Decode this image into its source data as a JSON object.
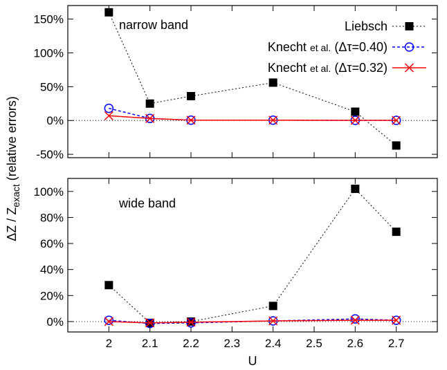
{
  "chart_data": [
    {
      "type": "line",
      "panel": "top",
      "annotation": "narrow band",
      "x": [
        2,
        2.1,
        2.2,
        2.4,
        2.6,
        2.7
      ],
      "xlim": [
        1.9,
        2.8
      ],
      "ylim": [
        -55,
        170
      ],
      "yticks": [
        -50,
        0,
        50,
        100,
        150
      ],
      "ytick_labels": [
        "-50%",
        "0%",
        "50%",
        "100%",
        "150%"
      ],
      "zero_line": true,
      "legend_position": "top-right",
      "series": [
        {
          "name": "Liebsch",
          "marker": "filled-square",
          "line": "dotted",
          "color": "#000000",
          "values": [
            160,
            25,
            36,
            56,
            13,
            -37
          ]
        },
        {
          "name": "Knecht et al. (Δτ=0.40)",
          "marker": "open-circle",
          "line": "dashed",
          "color": "#0000ff",
          "values": [
            18,
            3,
            0.5,
            0.5,
            0.2,
            0.2
          ]
        },
        {
          "name": "Knecht et al. (Δτ=0.32)",
          "marker": "cross",
          "line": "solid",
          "color": "#ff0000",
          "values": [
            7,
            3,
            0.5,
            0.5,
            0.2,
            0.2
          ]
        }
      ]
    },
    {
      "type": "line",
      "panel": "bottom",
      "annotation": "wide band",
      "x": [
        2,
        2.1,
        2.2,
        2.4,
        2.6,
        2.7
      ],
      "xlim": [
        1.9,
        2.8
      ],
      "ylim": [
        -8,
        110
      ],
      "yticks": [
        0,
        20,
        40,
        60,
        80,
        100
      ],
      "ytick_labels": [
        "0%",
        "20%",
        "40%",
        "60%",
        "80%",
        "100%"
      ],
      "xticks": [
        2,
        2.1,
        2.2,
        2.3,
        2.4,
        2.5,
        2.6,
        2.7
      ],
      "xtick_labels": [
        "2",
        "2.1",
        "2.2",
        "2.3",
        "2.4",
        "2.5",
        "2.6",
        "2.7"
      ],
      "xlabel": "U",
      "zero_line": true,
      "series": [
        {
          "name": "Liebsch",
          "marker": "filled-square",
          "line": "dotted",
          "color": "#000000",
          "values": [
            28,
            -1,
            0,
            12,
            102,
            69
          ]
        },
        {
          "name": "Knecht et al. (Δτ=0.40)",
          "marker": "open-circle",
          "line": "dashed",
          "color": "#0000ff",
          "values": [
            1,
            -1.5,
            -1,
            0.5,
            2,
            1
          ]
        },
        {
          "name": "Knecht et al. (Δτ=0.32)",
          "marker": "cross",
          "line": "solid",
          "color": "#ff0000",
          "values": [
            0,
            -1,
            -0.5,
            0.5,
            1,
            1
          ]
        }
      ]
    }
  ],
  "shared_ylabel": {
    "prefix": "ΔZ / Z",
    "subscript": "exact",
    "suffix": " (relative errors)"
  },
  "legend_labels": {
    "liebsch": "Liebsch",
    "knecht_prefix": "Knecht",
    "et_al": "et al.",
    "dt40": "(Δτ=0.40)",
    "dt32": "(Δτ=0.32)"
  }
}
